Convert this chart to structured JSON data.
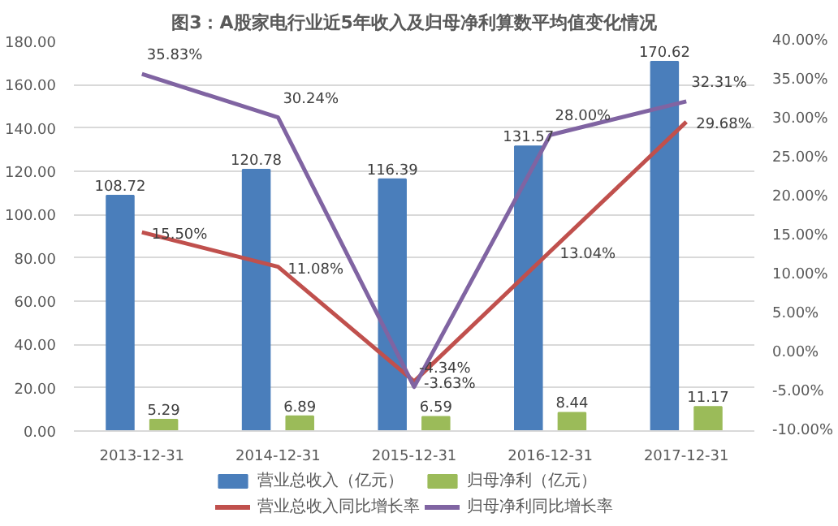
{
  "chart_data": {
    "type": "bar",
    "title": "图3：A股家电行业近5年收入及归母净利算数平均值变化情况",
    "categories": [
      "2013-12-31",
      "2014-12-31",
      "2015-12-31",
      "2016-12-31",
      "2017-12-31"
    ],
    "series": [
      {
        "name": "营业总收入（亿元）",
        "color": "#4a7ebb",
        "values": [
          108.72,
          120.78,
          116.39,
          131.57,
          170.62
        ],
        "value_labels": [
          "108.72",
          "120.78",
          "116.39",
          "131.57",
          "170.62"
        ]
      },
      {
        "name": "归母净利（亿元）",
        "color": "#9bbb59",
        "values": [
          5.29,
          6.89,
          6.59,
          8.44,
          11.17
        ],
        "value_labels": [
          "5.29",
          "6.89",
          "6.59",
          "8.44",
          "11.17"
        ]
      },
      {
        "name": "营业总收入同比增长率",
        "type": "line",
        "axis": "y2",
        "color": "#c0504d",
        "values": [
          15.5,
          11.08,
          -3.63,
          13.04,
          29.68
        ],
        "value_labels": [
          "15.50%",
          "11.08%",
          "-3.63%",
          "13.04%",
          "29.68%"
        ]
      },
      {
        "name": "归母净利同比增长率",
        "type": "line",
        "axis": "y2",
        "color": "#8064a2",
        "values": [
          35.83,
          30.24,
          -4.34,
          28.0,
          32.31
        ],
        "value_labels": [
          "35.83%",
          "30.24%",
          "-4.34%",
          "28.00%",
          "32.31%"
        ]
      }
    ],
    "ylim": [
      0,
      180
    ],
    "yticks": [
      {
        "value": 0,
        "label": "0.00"
      },
      {
        "value": 20,
        "label": "20.00"
      },
      {
        "value": 40,
        "label": "40.00"
      },
      {
        "value": 60,
        "label": "60.00"
      },
      {
        "value": 80,
        "label": "80.00"
      },
      {
        "value": 100,
        "label": "100.00"
      },
      {
        "value": 120,
        "label": "120.00"
      },
      {
        "value": 140,
        "label": "140.00"
      },
      {
        "value": 160,
        "label": "160.00"
      },
      {
        "value": 180,
        "label": "180.00"
      }
    ],
    "y2lim": [
      -10,
      40
    ],
    "y2ticks": [
      {
        "value": -10,
        "label": "-10.00%"
      },
      {
        "value": -5,
        "label": "-5.00%"
      },
      {
        "value": 0,
        "label": "0.00%"
      },
      {
        "value": 5,
        "label": "5.00%"
      },
      {
        "value": 10,
        "label": "10.00%"
      },
      {
        "value": 15,
        "label": "15.00%"
      },
      {
        "value": 20,
        "label": "20.00%"
      },
      {
        "value": 25,
        "label": "25.00%"
      },
      {
        "value": 30,
        "label": "30.00%"
      },
      {
        "value": 35,
        "label": "35.00%"
      },
      {
        "value": 40,
        "label": "40.00%"
      }
    ],
    "grid": "y",
    "legend": "bottom",
    "marker": "none",
    "line_style": "solid"
  }
}
